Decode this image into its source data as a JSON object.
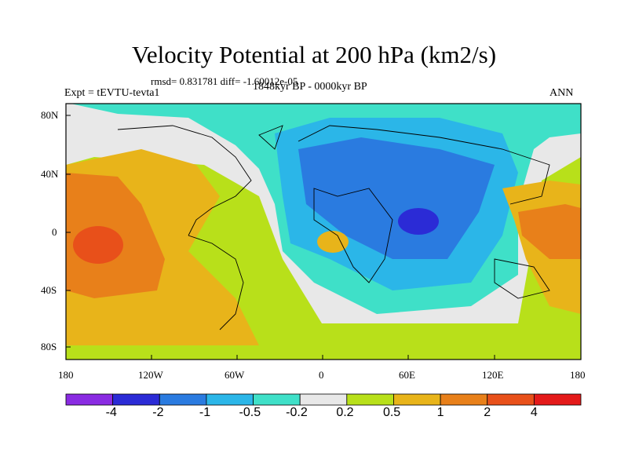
{
  "title": "Velocity Potential at 200 hPa (km2/s)",
  "stats": "rmsd= 0.831781 diff= -1.60012e-05",
  "experiment": "Expt = tEVTU-tevta1",
  "period": "1848kyr BP - 0000kyr BP",
  "season": "ANN",
  "lat_labels": [
    "80N",
    "40N",
    "0",
    "40S",
    "80S"
  ],
  "lon_labels": [
    "180",
    "120W",
    "60W",
    "0",
    "60E",
    "120E",
    "180"
  ],
  "colorbar": {
    "labels": [
      "-4",
      "-2",
      "-1",
      "-0.5",
      "-0.2",
      "0.2",
      "0.5",
      "1",
      "2",
      "4"
    ],
    "colors": [
      "#8a2be2",
      "#2b2bd6",
      "#2a7be0",
      "#2bb6e8",
      "#3fe0c8",
      "#e8e8e8",
      "#b8e01a",
      "#e8b41a",
      "#e8801a",
      "#e8501a",
      "#e41a1a"
    ]
  },
  "legend_semantics": {
    "negative": "blue shades",
    "near_zero": "grey",
    "positive": "orange/red shades"
  }
}
